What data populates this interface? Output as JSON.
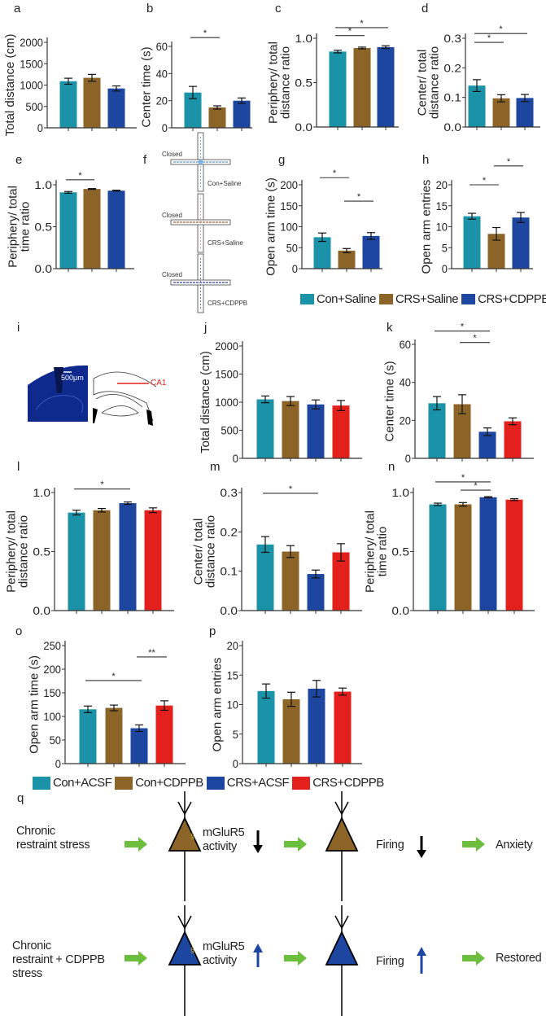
{
  "colors": {
    "teal": "#1a93a8",
    "brown": "#8c6428",
    "blue": "#1c46a0",
    "red": "#e3201b",
    "green_arrow": "#6cbf3c"
  },
  "legend1": [
    {
      "label": "Con+Saline",
      "color": "#1a93a8"
    },
    {
      "label": "CRS+Saline",
      "color": "#8c6428"
    },
    {
      "label": "CRS+CDPPB",
      "color": "#1c46a0"
    }
  ],
  "legend2": [
    {
      "label": "Con+ACSF",
      "color": "#1a93a8"
    },
    {
      "label": "Con+CDPPB",
      "color": "#8c6428"
    },
    {
      "label": "CRS+ACSF",
      "color": "#1c46a0"
    },
    {
      "label": "CRS+CDPPB",
      "color": "#e3201b"
    }
  ],
  "panel_f": {
    "label": "f",
    "closed": "Closed",
    "mazes": [
      "Con+Saline",
      "CRS+Saline",
      "CRS+CDPPB"
    ]
  },
  "panel_i": {
    "label": "i",
    "scale_bar": "500μm",
    "region": "CA1"
  },
  "panel_q": {
    "label": "q",
    "row1": {
      "cause": [
        "Chronic",
        "restraint stress"
      ],
      "mglur": [
        "mGluR5",
        "activity"
      ],
      "mglur_dir": "down",
      "firing": "Firing",
      "firing_dir": "down",
      "outcome": "Anxiety"
    },
    "row2": {
      "cause": [
        "Chronic",
        "restraint + CDPPB",
        "stress"
      ],
      "mglur": [
        "mGluR5",
        "activity"
      ],
      "mglur_dir": "up",
      "firing": "Firing",
      "firing_dir": "up",
      "outcome": "Restored"
    }
  },
  "chart_data": [
    {
      "panel": "a",
      "type": "bar",
      "ylabel": [
        "Total distance (cm)"
      ],
      "ylim": [
        0,
        2000
      ],
      "ticks": [
        "0",
        "500",
        "1000",
        "1500",
        "2000"
      ],
      "tick_values": [
        0,
        500,
        1000,
        1500,
        2000
      ],
      "groups": [
        "Con+Saline",
        "CRS+Saline",
        "CRS+CDPPB"
      ],
      "values": [
        1090,
        1170,
        920
      ],
      "sem": [
        70,
        80,
        60
      ],
      "sig": []
    },
    {
      "panel": "b",
      "type": "bar",
      "ylabel": [
        "Center time (s)"
      ],
      "ylim": [
        0,
        60
      ],
      "ticks": [
        "0",
        "20",
        "40",
        "60"
      ],
      "tick_values": [
        0,
        20,
        40,
        60
      ],
      "groups": [
        "Con+Saline",
        "CRS+Saline",
        "CRS+CDPPB"
      ],
      "values": [
        26,
        15,
        20
      ],
      "sem": [
        4.5,
        1.2,
        2
      ],
      "sig": [
        {
          "from": 0,
          "to": 1,
          "label": "*",
          "y": 66.5
        }
      ]
    },
    {
      "panel": "c",
      "type": "bar",
      "ylabel": [
        "Periphery/ total",
        "distance ratio"
      ],
      "ylim": [
        0,
        1.0
      ],
      "ticks": [
        "0.0",
        "0.5",
        "1.0"
      ],
      "tick_values": [
        0,
        0.5,
        1.0
      ],
      "groups": [
        "Con+Saline",
        "CRS+Saline",
        "CRS+CDPPB"
      ],
      "values": [
        0.85,
        0.89,
        0.9
      ],
      "sem": [
        0.015,
        0.01,
        0.015
      ],
      "sig": [
        {
          "from": 0,
          "to": 1,
          "label": "*",
          "y": 1.03
        },
        {
          "from": 0,
          "to": 2,
          "label": "*",
          "y": 1.12
        }
      ]
    },
    {
      "panel": "d",
      "type": "bar",
      "ylabel": [
        "Center/ total",
        "distance ratio"
      ],
      "ylim": [
        0,
        0.3
      ],
      "ticks": [
        "0.0",
        "0.1",
        "0.2",
        "0.3"
      ],
      "tick_values": [
        0,
        0.1,
        0.2,
        0.3
      ],
      "groups": [
        "Con+Saline",
        "CRS+Saline",
        "CRS+CDPPB"
      ],
      "values": [
        0.14,
        0.097,
        0.098
      ],
      "sem": [
        0.02,
        0.012,
        0.012
      ],
      "sig": [
        {
          "from": 0,
          "to": 1,
          "label": "*",
          "y": 0.286
        },
        {
          "from": 0,
          "to": 2,
          "label": "*",
          "y": 0.316
        }
      ]
    },
    {
      "panel": "e",
      "type": "bar",
      "ylabel": [
        "Periphery/ total",
        "time ratio"
      ],
      "ylim": [
        0,
        1.0
      ],
      "ticks": [
        "0.0",
        "0.5",
        "1.0"
      ],
      "tick_values": [
        0,
        0.5,
        1.0
      ],
      "groups": [
        "Con+Saline",
        "CRS+Saline",
        "CRS+CDPPB"
      ],
      "values": [
        0.91,
        0.95,
        0.93
      ],
      "sem": [
        0.01,
        0.005,
        0.006
      ],
      "sig": [
        {
          "from": 0,
          "to": 1,
          "label": "*",
          "y": 1.06
        }
      ]
    },
    {
      "panel": "g",
      "type": "bar",
      "ylabel": [
        "Open arm time (s)"
      ],
      "ylim": [
        0,
        200
      ],
      "ticks": [
        "0",
        "50",
        "100",
        "150",
        "200"
      ],
      "tick_values": [
        0,
        50,
        100,
        150,
        200
      ],
      "groups": [
        "Con+Saline",
        "CRS+Saline",
        "CRS+CDPPB"
      ],
      "values": [
        75,
        43,
        78
      ],
      "sem": [
        10,
        5,
        8
      ],
      "sig": [
        {
          "from": 0,
          "to": 1,
          "label": "*",
          "y": 217
        },
        {
          "from": 1,
          "to": 2,
          "label": "*",
          "y": 161
        }
      ]
    },
    {
      "panel": "h",
      "type": "bar",
      "ylabel": [
        "Open arm entries"
      ],
      "ylim": [
        0,
        20
      ],
      "ticks": [
        "0",
        "5",
        "10",
        "15",
        "20"
      ],
      "tick_values": [
        0,
        5,
        10,
        15,
        20
      ],
      "groups": [
        "Con+Saline",
        "CRS+Saline",
        "CRS+CDPPB"
      ],
      "values": [
        12.5,
        8.3,
        12.2
      ],
      "sem": [
        0.7,
        1.5,
        1.2
      ],
      "sig": [
        {
          "from": 0,
          "to": 1,
          "label": "*",
          "y": 20
        },
        {
          "from": 1,
          "to": 2,
          "label": "*",
          "y": 24.5
        }
      ]
    },
    {
      "panel": "j",
      "type": "bar",
      "ylabel": [
        "Total distance (cm)"
      ],
      "ylim": [
        0,
        2000
      ],
      "ticks": [
        "0",
        "500",
        "1000",
        "1500",
        "2000"
      ],
      "tick_values": [
        0,
        500,
        1000,
        1500,
        2000
      ],
      "groups": [
        "Con+ACSF",
        "Con+CDPPB",
        "CRS+ACSF",
        "CRS+CDPPB"
      ],
      "values": [
        1050,
        1020,
        960,
        940
      ],
      "sem": [
        60,
        80,
        80,
        90
      ],
      "sig": []
    },
    {
      "panel": "k",
      "type": "bar",
      "ylabel": [
        "Center time (s)"
      ],
      "ylim": [
        0,
        60
      ],
      "ticks": [
        "0",
        "20",
        "40",
        "60"
      ],
      "tick_values": [
        0,
        20,
        40,
        60
      ],
      "groups": [
        "Con+ACSF",
        "Con+CDPPB",
        "CRS+ACSF",
        "CRS+CDPPB"
      ],
      "values": [
        29,
        28.5,
        14,
        19.5
      ],
      "sem": [
        3.5,
        5,
        2,
        1.8
      ],
      "sig": [
        {
          "from": 0,
          "to": 2,
          "label": "*",
          "y": 67
        },
        {
          "from": 1,
          "to": 2,
          "label": "*",
          "y": 61
        }
      ]
    },
    {
      "panel": "l",
      "type": "bar",
      "ylabel": [
        "Periphery/ total",
        "distance ratio"
      ],
      "ylim": [
        0,
        1.0
      ],
      "ticks": [
        "0.0",
        "0.5",
        "1.0"
      ],
      "tick_values": [
        0,
        0.5,
        1.0
      ],
      "groups": [
        "Con+ACSF",
        "Con+CDPPB",
        "CRS+ACSF",
        "CRS+CDPPB"
      ],
      "values": [
        0.83,
        0.85,
        0.91,
        0.85
      ],
      "sem": [
        0.02,
        0.015,
        0.01,
        0.02
      ],
      "sig": [
        {
          "from": 0,
          "to": 2,
          "label": "*",
          "y": 1.03
        }
      ]
    },
    {
      "panel": "m",
      "type": "bar",
      "ylabel": [
        "Center/ total",
        "distance ratio"
      ],
      "ylim": [
        0,
        0.3
      ],
      "ticks": [
        "0.0",
        "0.1",
        "0.2",
        "0.3"
      ],
      "tick_values": [
        0,
        0.1,
        0.2,
        0.3
      ],
      "groups": [
        "Con+ACSF",
        "Con+CDPPB",
        "CRS+ACSF",
        "CRS+CDPPB"
      ],
      "values": [
        0.168,
        0.15,
        0.093,
        0.148
      ],
      "sem": [
        0.02,
        0.015,
        0.01,
        0.022
      ],
      "sig": [
        {
          "from": 0,
          "to": 2,
          "label": "*",
          "y": 0.298
        }
      ]
    },
    {
      "panel": "n",
      "type": "bar",
      "ylabel": [
        "Periphery/ total",
        "time ratio"
      ],
      "ylim": [
        0,
        1.0
      ],
      "ticks": [
        "0.0",
        "0.5",
        "1.0"
      ],
      "tick_values": [
        0,
        0.5,
        1.0
      ],
      "groups": [
        "Con+ACSF",
        "Con+CDPPB",
        "CRS+ACSF",
        "CRS+CDPPB"
      ],
      "values": [
        0.9,
        0.9,
        0.96,
        0.94
      ],
      "sem": [
        0.01,
        0.015,
        0.005,
        0.008
      ],
      "sig": [
        {
          "from": 0,
          "to": 2,
          "label": "*",
          "y": 1.09
        },
        {
          "from": 1,
          "to": 2,
          "label": "*",
          "y": 1.02
        }
      ]
    },
    {
      "panel": "o",
      "type": "bar",
      "ylabel": [
        "Open arm time (s)"
      ],
      "ylim": [
        0,
        250
      ],
      "ticks": [
        "0",
        "50",
        "100",
        "150",
        "200",
        "250"
      ],
      "tick_values": [
        0,
        50,
        100,
        150,
        200,
        250
      ],
      "groups": [
        "Con+ACSF",
        "Con+CDPPB",
        "CRS+ACSF",
        "CRS+CDPPB"
      ],
      "values": [
        115,
        118,
        75,
        123
      ],
      "sem": [
        7,
        6,
        7,
        10
      ],
      "sig": [
        {
          "from": 0,
          "to": 2,
          "label": "*",
          "y": 176
        },
        {
          "from": 2,
          "to": 3,
          "label": "**",
          "y": 226
        }
      ]
    },
    {
      "panel": "p",
      "type": "bar",
      "ylabel": [
        "Open arm entries"
      ],
      "ylim": [
        0,
        20
      ],
      "ticks": [
        "0",
        "5",
        "10",
        "15",
        "20"
      ],
      "tick_values": [
        0,
        5,
        10,
        15,
        20
      ],
      "groups": [
        "Con+ACSF",
        "Con+CDPPB",
        "CRS+ACSF",
        "CRS+CDPPB"
      ],
      "values": [
        12.3,
        10.9,
        12.7,
        12.2
      ],
      "sem": [
        1.2,
        1.2,
        1.4,
        0.6
      ],
      "sig": []
    }
  ]
}
